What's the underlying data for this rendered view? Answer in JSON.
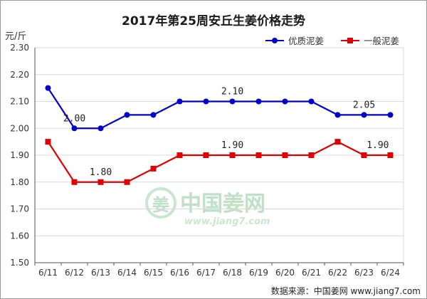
{
  "colors": {
    "series_blue": "#0000cc",
    "series_red": "#e00000",
    "grid": "#d9d9d9",
    "axis": "#555555",
    "watermark": "#bfe0c6"
  },
  "watermark": {
    "logo_char": "姜",
    "name": "中国姜网",
    "url": "www.jiang7.com"
  },
  "source_note": "数据来源：中国姜网 www.jiang7.com",
  "chart_data": {
    "type": "line",
    "title": "2017年第25周安丘生姜价格走势",
    "unit_label": "元/斤",
    "xlabel": "",
    "ylabel": "",
    "categories": [
      "6/11",
      "6/12",
      "6/13",
      "6/14",
      "6/15",
      "6/16",
      "6/17",
      "6/18",
      "6/19",
      "6/20",
      "6/21",
      "6/22",
      "6/23",
      "6/24"
    ],
    "ylim": [
      1.5,
      2.3
    ],
    "yticks": [
      "1.50",
      "1.60",
      "1.70",
      "1.80",
      "1.90",
      "2.00",
      "2.10",
      "2.20",
      "2.30"
    ],
    "grid": true,
    "legend_position": "top-right",
    "series": [
      {
        "name": "优质泥姜",
        "color": "#0000cc",
        "marker": "circle",
        "values": [
          2.15,
          2.0,
          2.0,
          2.05,
          2.05,
          2.1,
          2.1,
          2.1,
          2.1,
          2.1,
          2.1,
          2.05,
          2.05,
          2.05
        ]
      },
      {
        "name": "一般泥姜",
        "color": "#e00000",
        "marker": "square",
        "values": [
          1.95,
          1.8,
          1.8,
          1.8,
          1.85,
          1.9,
          1.9,
          1.9,
          1.9,
          1.9,
          1.9,
          1.95,
          1.9,
          1.9
        ]
      }
    ],
    "annotations": [
      {
        "series": 0,
        "index": 1,
        "text": "2.00",
        "position": "above"
      },
      {
        "series": 0,
        "index": 7,
        "text": "2.10",
        "position": "above"
      },
      {
        "series": 0,
        "index": 12,
        "text": "2.05",
        "position": "above"
      },
      {
        "series": 1,
        "index": 2,
        "text": "1.80",
        "position": "above"
      },
      {
        "series": 1,
        "index": 7,
        "text": "1.90",
        "position": "above"
      },
      {
        "series": 1,
        "index": 13,
        "text": "1.90",
        "position": "above-left"
      }
    ]
  }
}
